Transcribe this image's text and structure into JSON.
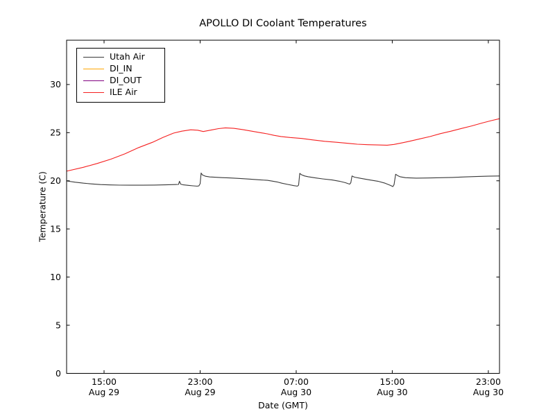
{
  "figure_bg": "#ffffff",
  "axes": {
    "spine_color": "#000000",
    "tick_length": 4.5,
    "tick_direction": "in",
    "ticks_on_all_sides": true
  },
  "chart_data": {
    "type": "line",
    "title": "APOLLO DI Coolant Temperatures",
    "xlabel": "Date (GMT)",
    "ylabel": "Temperature (C)",
    "x_unit": "hours since Aug 29 00:00 GMT",
    "xlim": [
      11.88,
      47.93
    ],
    "ylim": [
      0,
      34.6
    ],
    "grid": false,
    "legend_position": "upper-left",
    "yticks": [
      0,
      5,
      10,
      15,
      20,
      25,
      30
    ],
    "xticks": [
      {
        "hour": 15,
        "time": "15:00",
        "date": "Aug 29"
      },
      {
        "hour": 23,
        "time": "23:00",
        "date": "Aug 29"
      },
      {
        "hour": 31,
        "time": "07:00",
        "date": "Aug 30"
      },
      {
        "hour": 39,
        "time": "15:00",
        "date": "Aug 30"
      },
      {
        "hour": 47,
        "time": "23:00",
        "date": "Aug 30"
      }
    ],
    "series": [
      {
        "name": "Utah Air",
        "color": "#383838",
        "points": [
          [
            11.88,
            19.98
          ],
          [
            12.6,
            19.85
          ],
          [
            13.3,
            19.75
          ],
          [
            14.0,
            19.67
          ],
          [
            14.7,
            19.61
          ],
          [
            15.5,
            19.57
          ],
          [
            16.3,
            19.55
          ],
          [
            17.2,
            19.54
          ],
          [
            18.2,
            19.54
          ],
          [
            19.2,
            19.56
          ],
          [
            20.1,
            19.58
          ],
          [
            20.9,
            19.61
          ],
          [
            21.2,
            19.62
          ],
          [
            21.28,
            19.95
          ],
          [
            21.38,
            19.65
          ],
          [
            21.6,
            19.58
          ],
          [
            22.0,
            19.53
          ],
          [
            22.4,
            19.48
          ],
          [
            22.75,
            19.44
          ],
          [
            22.9,
            19.47
          ],
          [
            23.0,
            19.7
          ],
          [
            23.08,
            20.8
          ],
          [
            23.2,
            20.6
          ],
          [
            23.45,
            20.47
          ],
          [
            23.8,
            20.4
          ],
          [
            24.2,
            20.37
          ],
          [
            24.8,
            20.33
          ],
          [
            25.4,
            20.3
          ],
          [
            26.2,
            20.25
          ],
          [
            27.1,
            20.18
          ],
          [
            28.0,
            20.1
          ],
          [
            28.6,
            20.05
          ],
          [
            29.0,
            19.97
          ],
          [
            29.4,
            19.88
          ],
          [
            29.8,
            19.75
          ],
          [
            30.3,
            19.62
          ],
          [
            30.8,
            19.5
          ],
          [
            31.1,
            19.44
          ],
          [
            31.2,
            19.55
          ],
          [
            31.3,
            20.77
          ],
          [
            31.45,
            20.62
          ],
          [
            31.7,
            20.5
          ],
          [
            32.0,
            20.42
          ],
          [
            32.6,
            20.3
          ],
          [
            33.2,
            20.2
          ],
          [
            34.0,
            20.08
          ],
          [
            34.6,
            19.95
          ],
          [
            35.1,
            19.8
          ],
          [
            35.45,
            19.65
          ],
          [
            35.55,
            19.8
          ],
          [
            35.65,
            20.5
          ],
          [
            35.85,
            20.38
          ],
          [
            36.4,
            20.25
          ],
          [
            37.1,
            20.1
          ],
          [
            37.8,
            19.95
          ],
          [
            38.4,
            19.75
          ],
          [
            38.85,
            19.52
          ],
          [
            39.05,
            19.4
          ],
          [
            39.15,
            19.6
          ],
          [
            39.28,
            20.68
          ],
          [
            39.5,
            20.5
          ],
          [
            39.65,
            20.42
          ],
          [
            40.1,
            20.32
          ],
          [
            41.0,
            20.28
          ],
          [
            42.0,
            20.29
          ],
          [
            43.0,
            20.32
          ],
          [
            44.0,
            20.35
          ],
          [
            45.0,
            20.4
          ],
          [
            46.0,
            20.44
          ],
          [
            47.0,
            20.48
          ],
          [
            47.93,
            20.5
          ]
        ]
      },
      {
        "name": "DI_IN",
        "color": "#ffa500",
        "points": []
      },
      {
        "name": "DI_OUT",
        "color": "#800080",
        "points": []
      },
      {
        "name": "ILE Air",
        "color": "#f51f1f",
        "points": [
          [
            11.88,
            21.0
          ],
          [
            13.27,
            21.4
          ],
          [
            14.42,
            21.8
          ],
          [
            15.58,
            22.25
          ],
          [
            16.73,
            22.8
          ],
          [
            17.89,
            23.45
          ],
          [
            19.04,
            24.0
          ],
          [
            19.9,
            24.5
          ],
          [
            20.78,
            24.95
          ],
          [
            21.47,
            25.15
          ],
          [
            22.22,
            25.3
          ],
          [
            22.8,
            25.25
          ],
          [
            23.26,
            25.12
          ],
          [
            23.95,
            25.28
          ],
          [
            24.53,
            25.42
          ],
          [
            25.11,
            25.5
          ],
          [
            25.8,
            25.45
          ],
          [
            26.55,
            25.32
          ],
          [
            27.3,
            25.15
          ],
          [
            28.0,
            25.0
          ],
          [
            28.58,
            24.88
          ],
          [
            29.15,
            24.72
          ],
          [
            29.73,
            24.6
          ],
          [
            30.48,
            24.5
          ],
          [
            31.46,
            24.4
          ],
          [
            32.33,
            24.25
          ],
          [
            33.37,
            24.1
          ],
          [
            34.35,
            24.0
          ],
          [
            35.22,
            23.9
          ],
          [
            36.09,
            23.8
          ],
          [
            36.95,
            23.75
          ],
          [
            37.82,
            23.72
          ],
          [
            38.57,
            23.7
          ],
          [
            39.15,
            23.78
          ],
          [
            39.84,
            23.95
          ],
          [
            40.42,
            24.1
          ],
          [
            41.29,
            24.35
          ],
          [
            42.16,
            24.6
          ],
          [
            43.02,
            24.9
          ],
          [
            43.89,
            25.15
          ],
          [
            44.76,
            25.43
          ],
          [
            45.62,
            25.7
          ],
          [
            46.49,
            26.0
          ],
          [
            47.24,
            26.25
          ],
          [
            47.93,
            26.45
          ]
        ]
      }
    ]
  }
}
